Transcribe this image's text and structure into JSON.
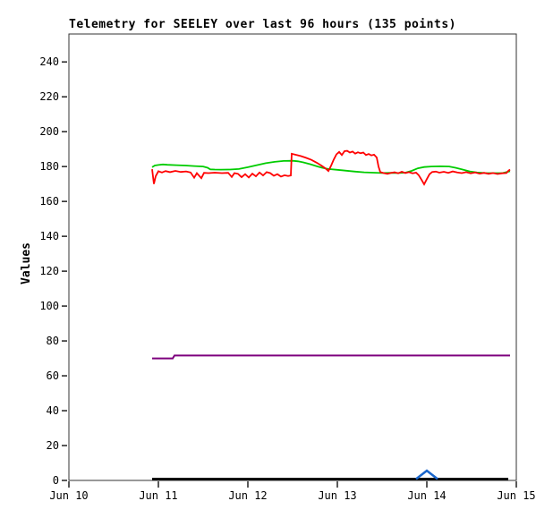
{
  "chart_data": {
    "type": "line",
    "title": "Telemetry for SEELEY over last 96 hours (135 points)",
    "ylabel": "Values",
    "xlabel": "",
    "x_unit": "days since Jun 10 00:00",
    "x_range_days": [
      0,
      5
    ],
    "ylim": [
      0,
      256
    ],
    "y_ticks": [
      0,
      20,
      40,
      60,
      80,
      100,
      120,
      140,
      160,
      180,
      200,
      220,
      240
    ],
    "x_ticks": [
      {
        "label": "Jun 10",
        "t": 0
      },
      {
        "label": "Jun 11",
        "t": 1
      },
      {
        "label": "Jun 12",
        "t": 2
      },
      {
        "label": "Jun 13",
        "t": 3
      },
      {
        "label": "Jun 14",
        "t": 4
      },
      {
        "label": "Jun 15",
        "t": 5
      }
    ],
    "grid": false,
    "legend_position": "none",
    "frame_color": "#333333",
    "tick_color": "#000000",
    "background": "#ffffff",
    "series": [
      {
        "name": "purple-line",
        "color": "#7d007d",
        "width": 2,
        "points": [
          [
            0.93,
            70.0
          ],
          [
            1.16,
            70.0
          ],
          [
            1.18,
            71.6
          ],
          [
            4.93,
            71.6
          ]
        ]
      },
      {
        "name": "black-line",
        "color": "#000000",
        "width": 2.5,
        "points": [
          [
            0.93,
            0.8
          ],
          [
            4.91,
            0.8
          ]
        ]
      },
      {
        "name": "blue-line",
        "color": "#1a66cc",
        "width": 2.5,
        "points": [
          [
            3.88,
            0.8
          ],
          [
            4.0,
            5.6
          ],
          [
            4.12,
            0.8
          ]
        ]
      },
      {
        "name": "green-line",
        "color": "#00cc00",
        "width": 1.8,
        "points": [
          [
            0.93,
            179.6
          ],
          [
            0.96,
            180.6
          ],
          [
            1.0,
            180.9
          ],
          [
            1.05,
            181.2
          ],
          [
            1.1,
            181.0
          ],
          [
            1.2,
            180.8
          ],
          [
            1.3,
            180.6
          ],
          [
            1.4,
            180.3
          ],
          [
            1.5,
            180.0
          ],
          [
            1.55,
            179.3
          ],
          [
            1.58,
            178.4
          ],
          [
            1.63,
            178.3
          ],
          [
            1.7,
            178.2
          ],
          [
            1.8,
            178.3
          ],
          [
            1.9,
            178.6
          ],
          [
            2.0,
            179.6
          ],
          [
            2.1,
            180.8
          ],
          [
            2.2,
            181.9
          ],
          [
            2.3,
            182.7
          ],
          [
            2.4,
            183.2
          ],
          [
            2.5,
            183.3
          ],
          [
            2.56,
            183.0
          ],
          [
            2.62,
            182.4
          ],
          [
            2.7,
            181.3
          ],
          [
            2.78,
            180.0
          ],
          [
            2.83,
            179.3
          ],
          [
            2.9,
            178.6
          ],
          [
            3.0,
            178.1
          ],
          [
            3.1,
            177.6
          ],
          [
            3.2,
            177.1
          ],
          [
            3.3,
            176.7
          ],
          [
            3.4,
            176.5
          ],
          [
            3.5,
            176.3
          ],
          [
            3.6,
            176.4
          ],
          [
            3.68,
            176.3
          ],
          [
            3.76,
            176.5
          ],
          [
            3.83,
            177.5
          ],
          [
            3.9,
            179.0
          ],
          [
            3.97,
            179.7
          ],
          [
            4.05,
            180.0
          ],
          [
            4.15,
            180.1
          ],
          [
            4.25,
            180.0
          ],
          [
            4.32,
            179.3
          ],
          [
            4.4,
            178.3
          ],
          [
            4.48,
            177.2
          ],
          [
            4.56,
            176.6
          ],
          [
            4.65,
            176.3
          ],
          [
            4.75,
            176.2
          ],
          [
            4.85,
            176.3
          ],
          [
            4.93,
            177.3
          ]
        ]
      },
      {
        "name": "red-line",
        "color": "#ff0000",
        "width": 1.8,
        "points": [
          [
            0.93,
            178.5
          ],
          [
            0.95,
            170.0
          ],
          [
            0.97,
            174.5
          ],
          [
            1.0,
            177.3
          ],
          [
            1.04,
            176.6
          ],
          [
            1.08,
            177.4
          ],
          [
            1.13,
            176.8
          ],
          [
            1.19,
            177.5
          ],
          [
            1.25,
            176.9
          ],
          [
            1.31,
            177.2
          ],
          [
            1.36,
            176.6
          ],
          [
            1.4,
            173.6
          ],
          [
            1.43,
            176.2
          ],
          [
            1.48,
            173.3
          ],
          [
            1.51,
            176.4
          ],
          [
            1.56,
            176.2
          ],
          [
            1.63,
            176.5
          ],
          [
            1.71,
            176.2
          ],
          [
            1.78,
            176.4
          ],
          [
            1.82,
            174.0
          ],
          [
            1.85,
            176.2
          ],
          [
            1.89,
            175.8
          ],
          [
            1.93,
            173.9
          ],
          [
            1.97,
            175.6
          ],
          [
            2.01,
            173.7
          ],
          [
            2.05,
            175.9
          ],
          [
            2.09,
            174.4
          ],
          [
            2.13,
            176.6
          ],
          [
            2.17,
            174.9
          ],
          [
            2.21,
            176.8
          ],
          [
            2.25,
            176.2
          ],
          [
            2.29,
            174.7
          ],
          [
            2.33,
            175.6
          ],
          [
            2.37,
            174.2
          ],
          [
            2.41,
            175.0
          ],
          [
            2.45,
            174.6
          ],
          [
            2.48,
            174.9
          ],
          [
            2.49,
            187.3
          ],
          [
            2.53,
            186.8
          ],
          [
            2.59,
            186.0
          ],
          [
            2.65,
            185.0
          ],
          [
            2.71,
            183.8
          ],
          [
            2.77,
            182.2
          ],
          [
            2.83,
            180.3
          ],
          [
            2.87,
            178.8
          ],
          [
            2.9,
            177.4
          ],
          [
            2.93,
            180.5
          ],
          [
            2.96,
            184.0
          ],
          [
            2.99,
            187.0
          ],
          [
            3.02,
            188.4
          ],
          [
            3.05,
            186.6
          ],
          [
            3.08,
            188.8
          ],
          [
            3.11,
            189.0
          ],
          [
            3.14,
            188.0
          ],
          [
            3.17,
            188.6
          ],
          [
            3.2,
            187.4
          ],
          [
            3.23,
            188.2
          ],
          [
            3.26,
            187.6
          ],
          [
            3.29,
            188.0
          ],
          [
            3.32,
            186.6
          ],
          [
            3.35,
            187.2
          ],
          [
            3.38,
            186.4
          ],
          [
            3.41,
            186.8
          ],
          [
            3.44,
            185.2
          ],
          [
            3.46,
            180.0
          ],
          [
            3.48,
            176.8
          ],
          [
            3.52,
            176.2
          ],
          [
            3.56,
            175.8
          ],
          [
            3.6,
            176.4
          ],
          [
            3.64,
            176.7
          ],
          [
            3.68,
            176.1
          ],
          [
            3.72,
            177.0
          ],
          [
            3.76,
            176.3
          ],
          [
            3.8,
            176.8
          ],
          [
            3.84,
            176.1
          ],
          [
            3.88,
            176.5
          ],
          [
            3.91,
            175.0
          ],
          [
            3.94,
            172.5
          ],
          [
            3.97,
            169.8
          ],
          [
            4.0,
            172.8
          ],
          [
            4.03,
            175.6
          ],
          [
            4.06,
            176.9
          ],
          [
            4.1,
            177.1
          ],
          [
            4.14,
            176.5
          ],
          [
            4.19,
            177.0
          ],
          [
            4.24,
            176.4
          ],
          [
            4.29,
            177.2
          ],
          [
            4.34,
            176.6
          ],
          [
            4.39,
            176.2
          ],
          [
            4.44,
            176.8
          ],
          [
            4.49,
            176.1
          ],
          [
            4.54,
            176.6
          ],
          [
            4.59,
            175.9
          ],
          [
            4.64,
            176.4
          ],
          [
            4.69,
            175.8
          ],
          [
            4.74,
            176.3
          ],
          [
            4.79,
            175.7
          ],
          [
            4.84,
            176.1
          ],
          [
            4.89,
            176.3
          ],
          [
            4.91,
            177.5
          ],
          [
            4.93,
            178.3
          ]
        ]
      }
    ]
  }
}
